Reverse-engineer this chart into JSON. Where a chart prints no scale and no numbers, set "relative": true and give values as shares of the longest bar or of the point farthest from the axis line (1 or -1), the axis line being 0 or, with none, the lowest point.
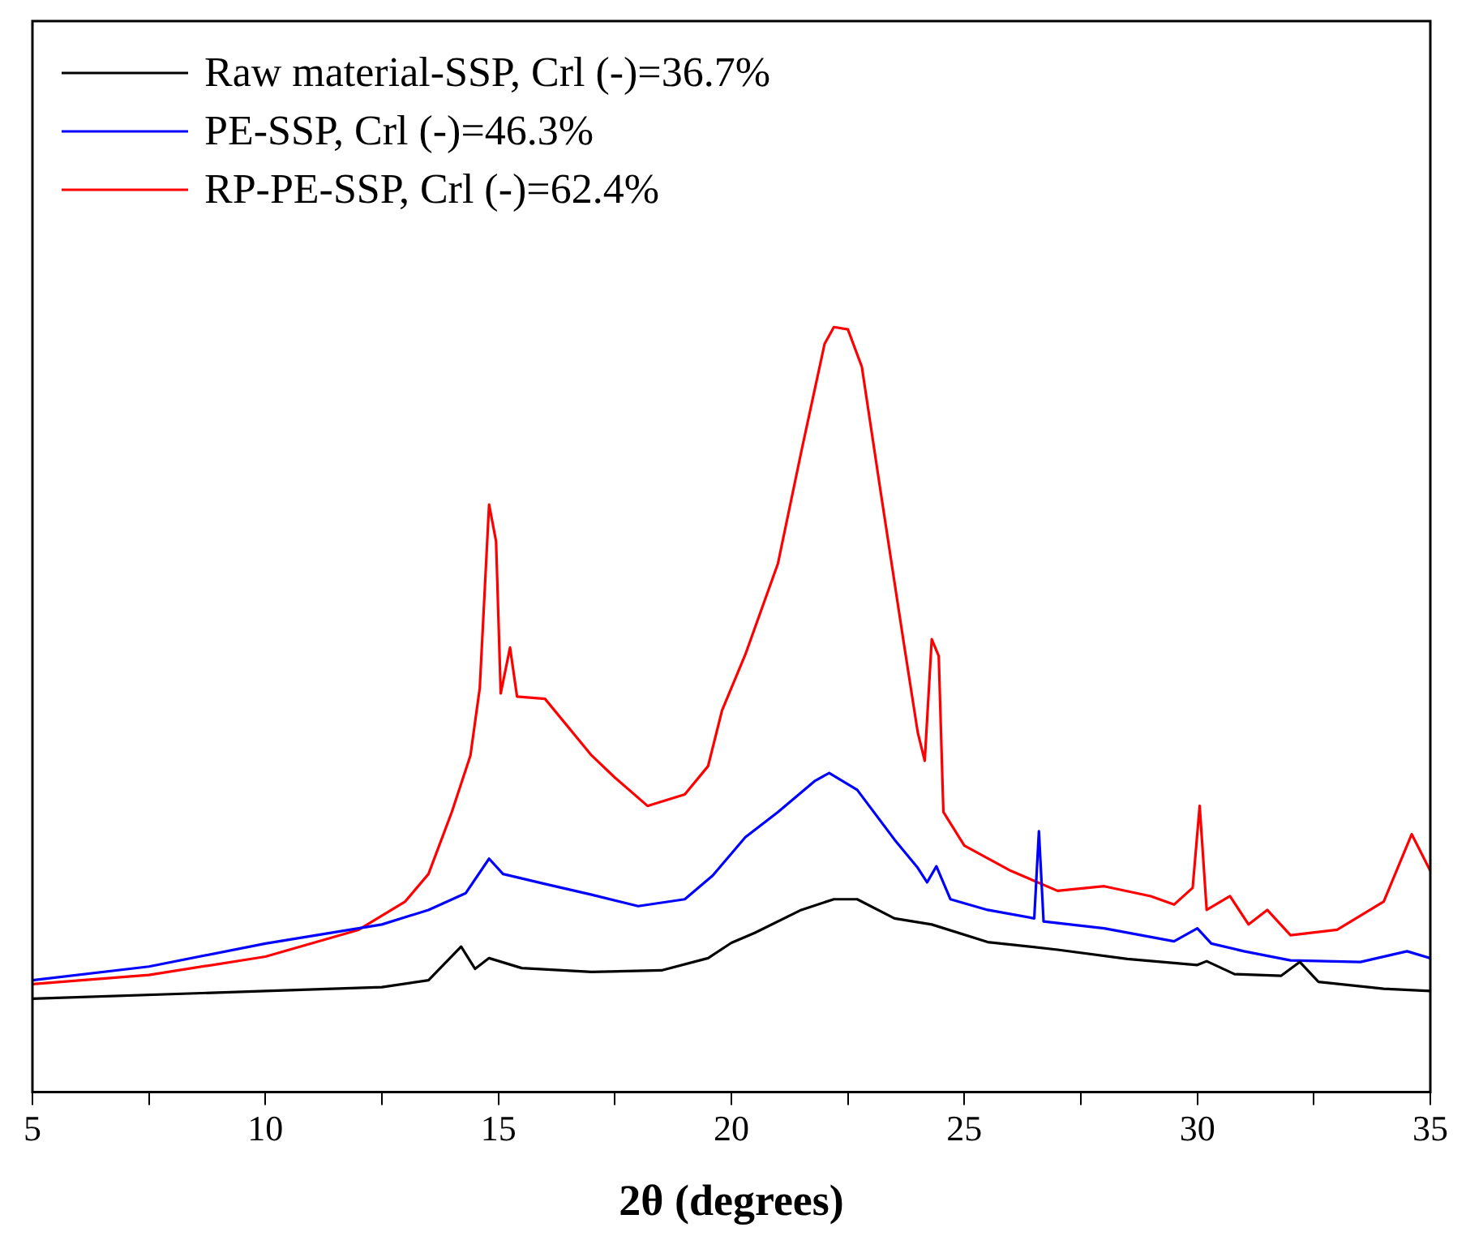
{
  "chart_data": {
    "type": "line",
    "xlabel": "2θ (degrees)",
    "relative": true,
    "legend": "top left",
    "tick_labels": "x",
    "grid": false,
    "marker": "none",
    "line_style": "solid",
    "xlim": [
      5,
      35
    ],
    "xticks": [
      5,
      {
        "value": 7.5,
        "label": null
      },
      10,
      {
        "value": 12.5,
        "label": null
      },
      15,
      {
        "value": 17.5,
        "label": null
      },
      20,
      {
        "value": 22.5,
        "label": null
      },
      25,
      {
        "value": 27.5,
        "label": null
      },
      30,
      {
        "value": 32.5,
        "label": null
      },
      35
    ],
    "series": [
      {
        "name": "Raw material-SSP, Crl (-)=36.7%",
        "color": "#000000",
        "x": [
          5,
          10,
          12.5,
          13.5,
          14.2,
          14.5,
          14.8,
          15.5,
          17,
          18.5,
          19.5,
          20,
          20.5,
          21.5,
          22.2,
          22.7,
          23.5,
          24.3,
          25.5,
          27,
          28.5,
          30,
          30.2,
          30.8,
          31.8,
          32.2,
          32.6,
          34,
          35
        ],
        "values": [
          0.122,
          0.132,
          0.137,
          0.146,
          0.19,
          0.161,
          0.175,
          0.162,
          0.157,
          0.159,
          0.175,
          0.195,
          0.208,
          0.238,
          0.252,
          0.252,
          0.227,
          0.219,
          0.196,
          0.186,
          0.174,
          0.166,
          0.171,
          0.154,
          0.152,
          0.17,
          0.144,
          0.135,
          0.132
        ]
      },
      {
        "name": "PE-SSP, Crl (-)=46.3%",
        "color": "#0000ff",
        "x": [
          5,
          7.5,
          10,
          12.5,
          13.5,
          14.3,
          14.8,
          15.1,
          16,
          17,
          18,
          19,
          19.6,
          20.3,
          21,
          21.8,
          22.1,
          22.7,
          23.5,
          24,
          24.2,
          24.4,
          24.7,
          25.5,
          26.5,
          26.6,
          26.7,
          28,
          29.5,
          30,
          30.3,
          31,
          32,
          33.5,
          34.5,
          35
        ],
        "values": [
          0.146,
          0.164,
          0.194,
          0.219,
          0.238,
          0.26,
          0.305,
          0.285,
          0.272,
          0.258,
          0.243,
          0.252,
          0.283,
          0.333,
          0.366,
          0.407,
          0.417,
          0.395,
          0.33,
          0.293,
          0.274,
          0.295,
          0.252,
          0.238,
          0.227,
          0.341,
          0.223,
          0.214,
          0.197,
          0.214,
          0.194,
          0.184,
          0.172,
          0.17,
          0.184,
          0.175
        ]
      },
      {
        "name": "RP-PE-SSP, Crl (-)=62.4%",
        "color": "#ff0000",
        "x": [
          5,
          7.5,
          10,
          12,
          13,
          13.5,
          14,
          14.4,
          14.6,
          14.8,
          14.95,
          15.05,
          15.25,
          15.4,
          16,
          17,
          17.5,
          18.2,
          19,
          19.5,
          19.8,
          20.3,
          21,
          21.5,
          22,
          22.2,
          22.5,
          22.8,
          23.2,
          23.7,
          24,
          24.15,
          24.3,
          24.45,
          24.55,
          25,
          26,
          27,
          28,
          29,
          29.5,
          29.9,
          30.05,
          30.2,
          30.7,
          31.1,
          31.5,
          32,
          33,
          34,
          34.6,
          35
        ],
        "values": [
          0.141,
          0.153,
          0.177,
          0.212,
          0.249,
          0.285,
          0.366,
          0.44,
          0.528,
          0.768,
          0.72,
          0.521,
          0.581,
          0.517,
          0.514,
          0.44,
          0.411,
          0.374,
          0.389,
          0.426,
          0.499,
          0.572,
          0.691,
          0.837,
          0.978,
          1,
          0.997,
          0.948,
          0.786,
          0.587,
          0.47,
          0.433,
          0.592,
          0.57,
          0.366,
          0.322,
          0.289,
          0.263,
          0.269,
          0.256,
          0.245,
          0.267,
          0.374,
          0.238,
          0.256,
          0.219,
          0.238,
          0.205,
          0.212,
          0.249,
          0.337,
          0.289
        ]
      }
    ]
  }
}
